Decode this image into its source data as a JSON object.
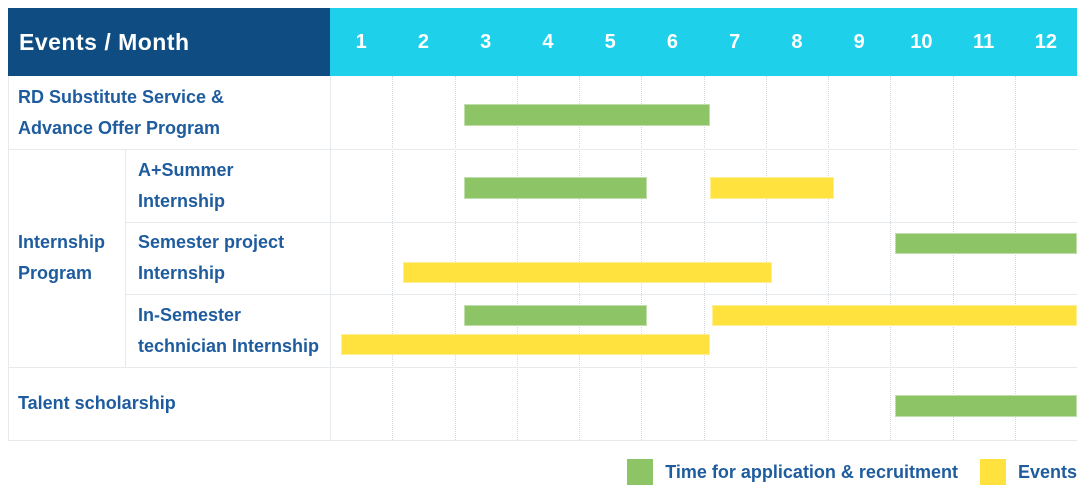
{
  "header": {
    "title": "Events / Month",
    "months": [
      "1",
      "2",
      "3",
      "4",
      "5",
      "6",
      "7",
      "8",
      "9",
      "10",
      "11",
      "12"
    ]
  },
  "colors": {
    "header_bg": "#0F4C81",
    "months_bg": "#1ED0EA",
    "green": "#8CC466",
    "yellow": "#FFE23D",
    "label_text": "#1E5C9E"
  },
  "legend": {
    "items": [
      {
        "color": "green",
        "label": "Time for application & recruitment"
      },
      {
        "color": "yellow",
        "label": "Events"
      }
    ]
  },
  "chart_data": {
    "type": "gantt",
    "title": "Events / Month",
    "x_axis": {
      "label": "Month",
      "ticks": [
        "1",
        "2",
        "3",
        "4",
        "5",
        "6",
        "7",
        "8",
        "9",
        "10",
        "11",
        "12"
      ],
      "range": [
        1,
        13
      ],
      "units": "month axis: 1 = start of Jan, 13 = end of Dec"
    },
    "group_label": "Internship Program",
    "group_label_lines": [
      "Internship",
      "Program"
    ],
    "rows": [
      {
        "id": "rd-substitute",
        "group": "",
        "label": "RD Substitute Service & Advance Offer Program",
        "label_lines": [
          "RD Substitute Service &",
          "Advance Offer Program"
        ],
        "bars": [
          {
            "color": "green",
            "kind": "application_recruitment",
            "lane": "single",
            "start_month": 3.15,
            "end_month": 7.1
          }
        ]
      },
      {
        "id": "a-plus-summer",
        "group": "Internship Program",
        "label": "A+Summer Internship",
        "label_lines": [
          "A+Summer",
          "Internship"
        ],
        "bars": [
          {
            "color": "green",
            "kind": "application_recruitment",
            "lane": "single",
            "start_month": 3.15,
            "end_month": 6.1
          },
          {
            "color": "yellow",
            "kind": "event",
            "lane": "single",
            "start_month": 7.1,
            "end_month": 9.1
          }
        ]
      },
      {
        "id": "semester-project",
        "group": "Internship Program",
        "label": "Semester project Internship",
        "label_lines": [
          "Semester project",
          "Internship"
        ],
        "bars": [
          {
            "color": "green",
            "kind": "application_recruitment",
            "lane": "top",
            "start_month": 10.08,
            "end_month": 13.0
          },
          {
            "color": "yellow",
            "kind": "event",
            "lane": "bottom",
            "start_month": 2.17,
            "end_month": 8.1
          }
        ]
      },
      {
        "id": "in-semester-technician",
        "group": "Internship Program",
        "label": "In-Semester technician Internship",
        "label_lines": [
          "In-Semester",
          "technician Internship"
        ],
        "bars": [
          {
            "color": "green",
            "kind": "application_recruitment",
            "lane": "top",
            "start_month": 3.15,
            "end_month": 6.1
          },
          {
            "color": "yellow",
            "kind": "event",
            "lane": "top",
            "start_month": 7.13,
            "end_month": 13.0
          },
          {
            "color": "yellow",
            "kind": "event",
            "lane": "bottom",
            "start_month": 1.18,
            "end_month": 7.1
          }
        ]
      },
      {
        "id": "talent-scholarship",
        "group": "",
        "label": "Talent scholarship",
        "label_lines": [
          "Talent scholarship"
        ],
        "bars": [
          {
            "color": "green",
            "kind": "application_recruitment",
            "lane": "single",
            "start_month": 10.08,
            "end_month": 13.0
          }
        ]
      }
    ]
  }
}
